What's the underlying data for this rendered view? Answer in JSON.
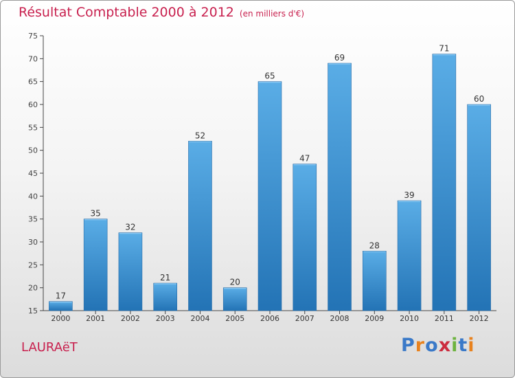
{
  "header": {
    "title": "Résultat Comptable 2000 à 2012",
    "unit": "(en milliers d'€)"
  },
  "footer": {
    "town": "LAURAëT",
    "logo": "Proxiti",
    "logo_letters": [
      {
        "ch": "P",
        "color": "#3a79c8"
      },
      {
        "ch": "r",
        "color": "#e8821e"
      },
      {
        "ch": "o",
        "color": "#3a79c8"
      },
      {
        "ch": "x",
        "color": "#cc2b3d"
      },
      {
        "ch": "i",
        "color": "#6db33f"
      },
      {
        "ch": "t",
        "color": "#3a79c8"
      },
      {
        "ch": "i",
        "color": "#e8821e"
      }
    ]
  },
  "colors": {
    "accent": "#c8204e",
    "bar_top": "#5aade6",
    "bar_bottom": "#2373b5",
    "axis": "#444444",
    "grid": "#bbbbbb"
  },
  "chart_data": {
    "type": "bar",
    "title": "Résultat Comptable 2000 à 2012",
    "subtitle": "(en milliers d'€)",
    "xlabel": "",
    "ylabel": "",
    "categories": [
      "2000",
      "2001",
      "2002",
      "2003",
      "2004",
      "2005",
      "2006",
      "2007",
      "2008",
      "2009",
      "2010",
      "2011",
      "2012"
    ],
    "values": [
      17,
      35,
      32,
      21,
      52,
      20,
      65,
      47,
      69,
      28,
      39,
      71,
      60
    ],
    "ylim": [
      15,
      75
    ],
    "yticks": [
      15,
      20,
      25,
      30,
      35,
      40,
      45,
      50,
      55,
      60,
      65,
      70,
      75
    ],
    "grid": false,
    "data_labels": true
  }
}
